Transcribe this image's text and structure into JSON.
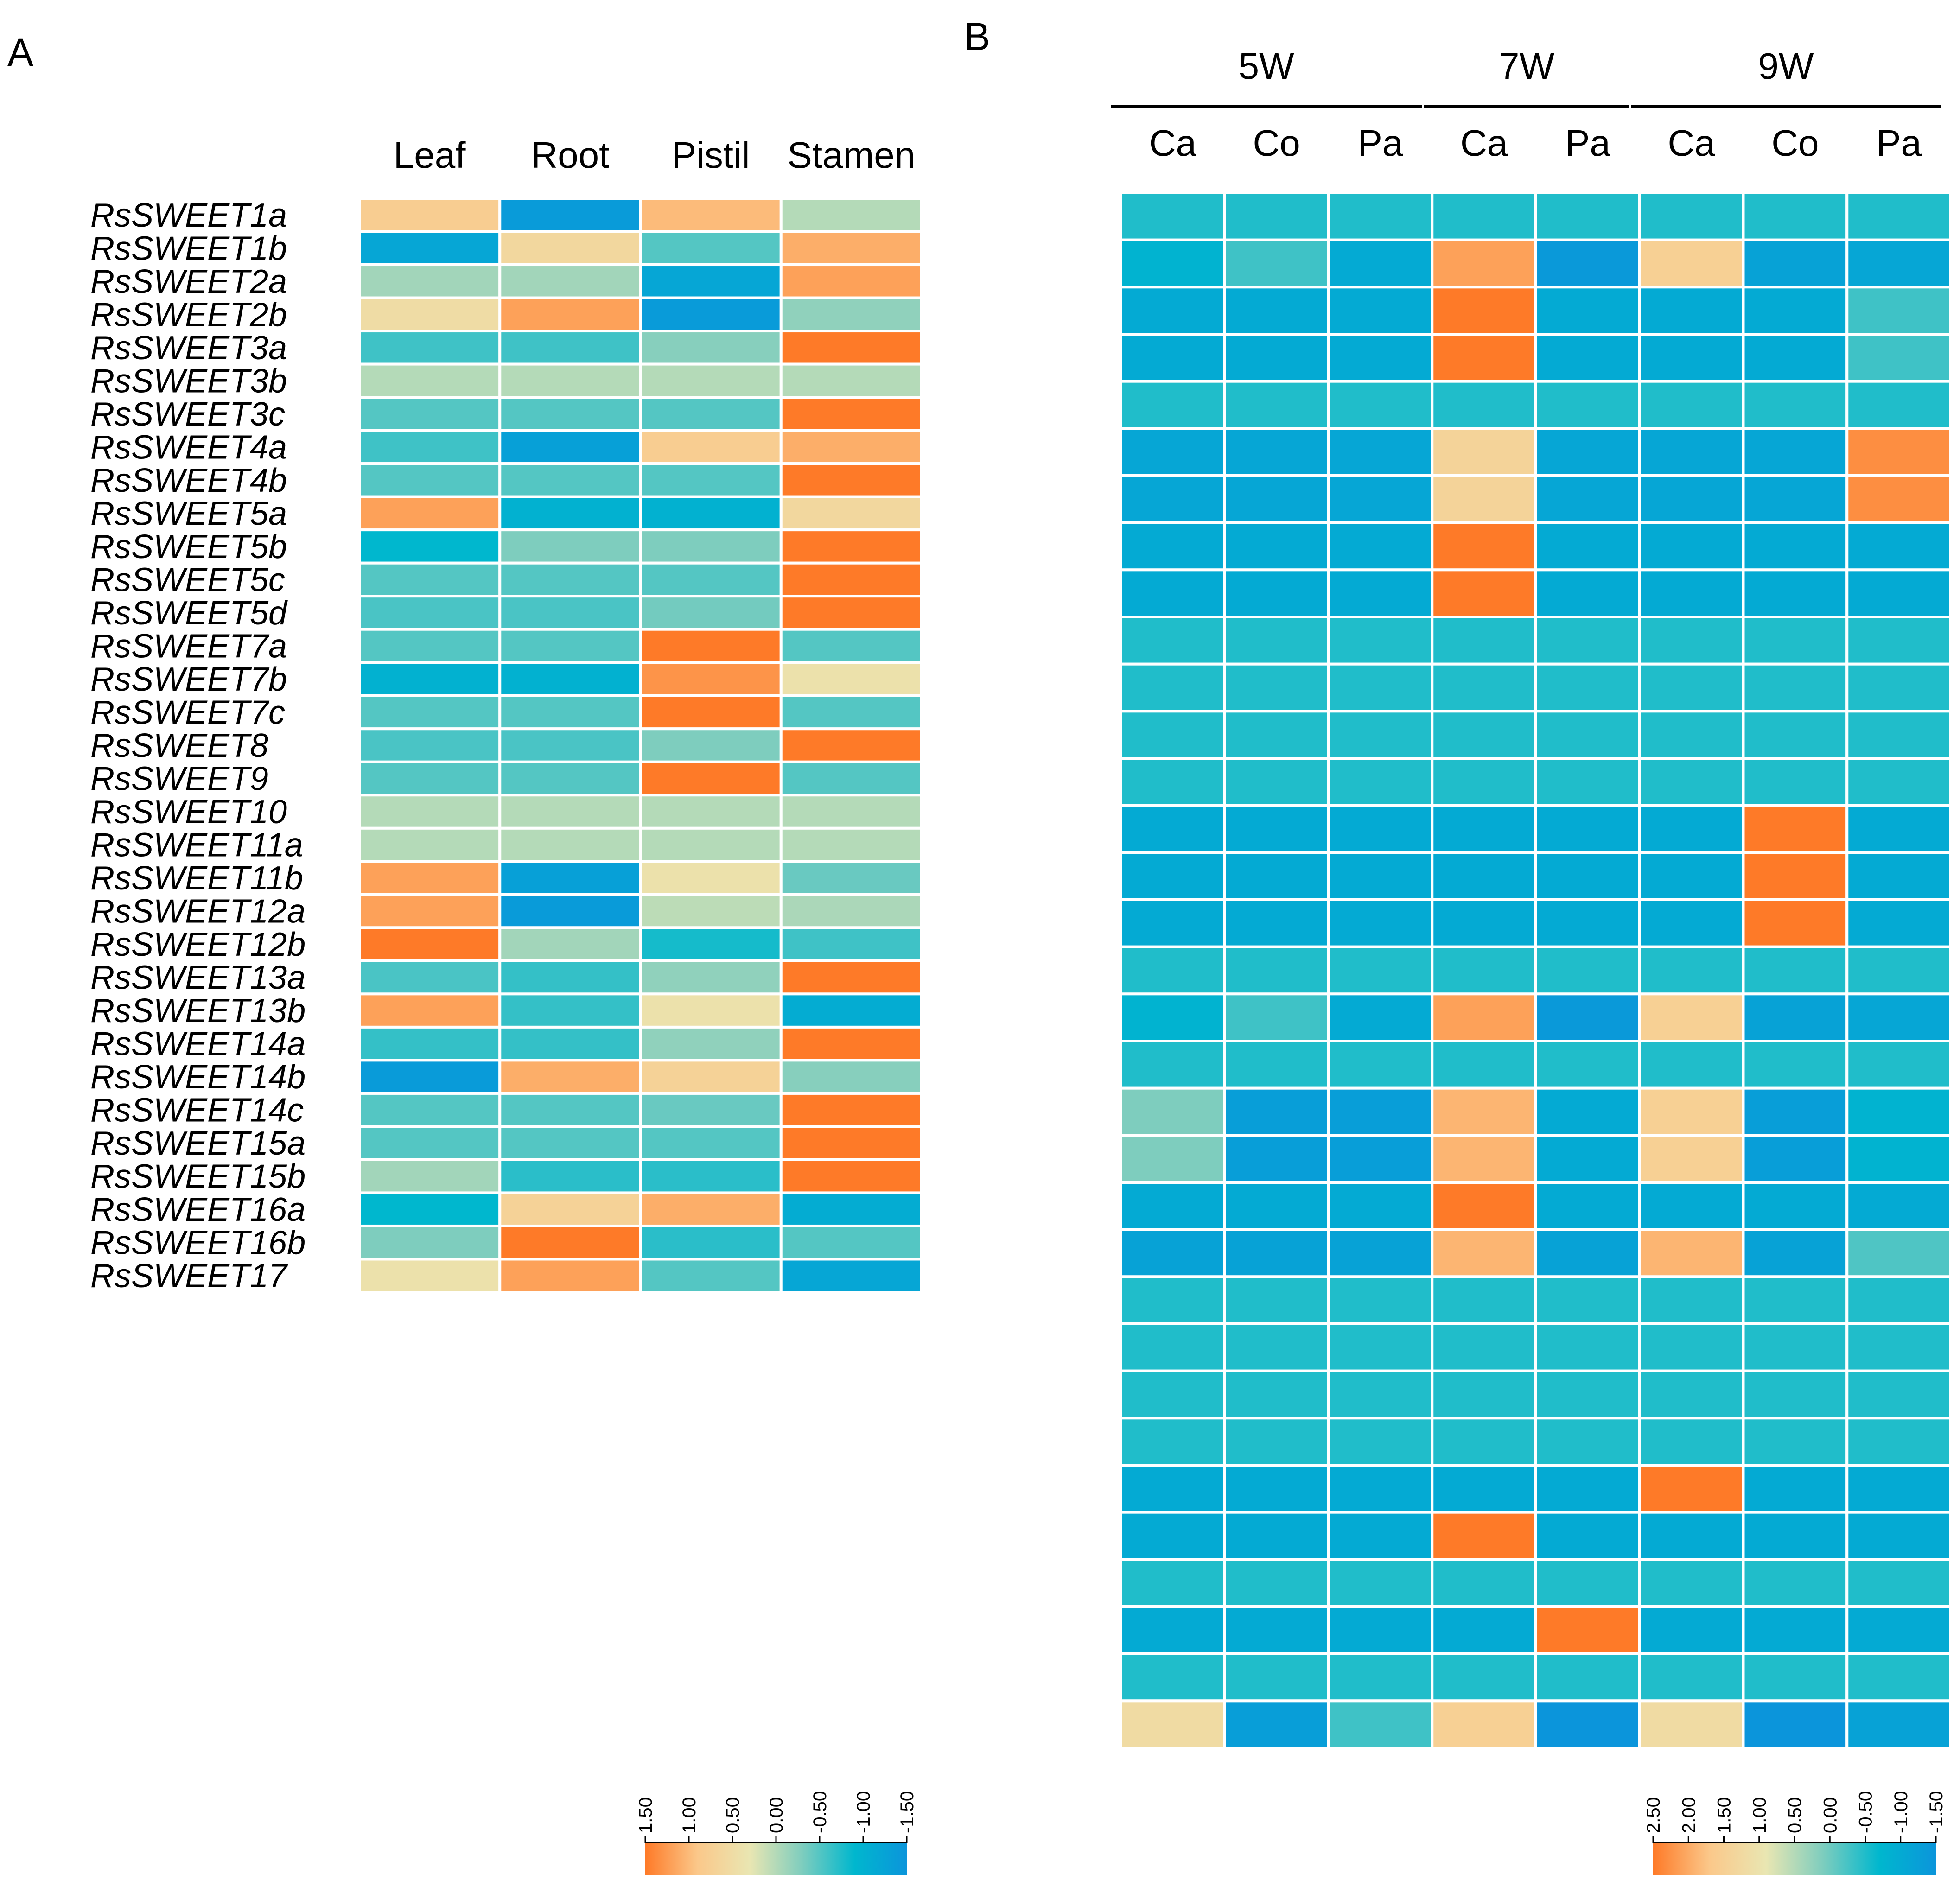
{
  "chart_data": [
    {
      "type": "heatmap",
      "panel_label": "A",
      "columns": [
        "Leaf",
        "Root",
        "Pistil",
        "Stamen"
      ],
      "rows": [
        "RsSWEET1a",
        "RsSWEET1b",
        "RsSWEET2a",
        "RsSWEET2b",
        "RsSWEET3a",
        "RsSWEET3b",
        "RsSWEET3c",
        "RsSWEET4a",
        "RsSWEET4b",
        "RsSWEET5a",
        "RsSWEET5b",
        "RsSWEET5c",
        "RsSWEET5d",
        "RsSWEET7a",
        "RsSWEET7b",
        "RsSWEET7c",
        "RsSWEET8",
        "RsSWEET9",
        "RsSWEET10",
        "RsSWEET11a",
        "RsSWEET11b",
        "RsSWEET12a",
        "RsSWEET12b",
        "RsSWEET13a",
        "RsSWEET13b",
        "RsSWEET14a",
        "RsSWEET14b",
        "RsSWEET14c",
        "RsSWEET15a",
        "RsSWEET15b",
        "RsSWEET16a",
        "RsSWEET16b",
        "RsSWEET17"
      ],
      "values": [
        [
          0.8,
          -1.4,
          1.0,
          0.0
        ],
        [
          -1.2,
          0.6,
          -0.5,
          1.1
        ],
        [
          -0.1,
          -0.1,
          -1.2,
          1.2
        ],
        [
          0.5,
          1.2,
          -1.4,
          -0.2
        ],
        [
          -0.6,
          -0.6,
          -0.25,
          1.5
        ],
        [
          0.0,
          0.0,
          0.0,
          0.0
        ],
        [
          -0.5,
          -0.5,
          -0.5,
          1.5
        ],
        [
          -0.6,
          -1.3,
          0.8,
          1.1
        ],
        [
          -0.5,
          -0.5,
          -0.5,
          1.5
        ],
        [
          1.2,
          -1.0,
          -1.0,
          0.6
        ],
        [
          -0.9,
          -0.3,
          -0.3,
          1.5
        ],
        [
          -0.5,
          -0.5,
          -0.5,
          1.5
        ],
        [
          -0.55,
          -0.55,
          -0.35,
          1.5
        ],
        [
          -0.5,
          -0.5,
          1.5,
          -0.5
        ],
        [
          -1.0,
          -1.0,
          1.3,
          0.4
        ],
        [
          -0.5,
          -0.5,
          1.5,
          -0.5
        ],
        [
          -0.55,
          -0.55,
          -0.3,
          1.5
        ],
        [
          -0.5,
          -0.5,
          1.5,
          -0.5
        ],
        [
          0.0,
          0.0,
          0.0,
          0.0
        ],
        [
          0.0,
          0.0,
          0.0,
          0.0
        ],
        [
          1.2,
          -1.3,
          0.4,
          -0.4
        ],
        [
          1.2,
          -1.4,
          0.05,
          -0.05
        ],
        [
          1.5,
          -0.1,
          -0.8,
          -0.6
        ],
        [
          -0.55,
          -0.65,
          -0.2,
          1.5
        ],
        [
          1.2,
          -0.65,
          0.4,
          -1.1
        ],
        [
          -0.65,
          -0.65,
          -0.2,
          1.5
        ],
        [
          -1.4,
          1.1,
          0.7,
          -0.25
        ],
        [
          -0.5,
          -0.5,
          -0.4,
          1.5
        ],
        [
          -0.5,
          -0.5,
          -0.5,
          1.5
        ],
        [
          -0.1,
          -0.7,
          -0.7,
          1.5
        ],
        [
          -0.9,
          0.7,
          1.1,
          -1.1
        ],
        [
          -0.3,
          1.5,
          -0.7,
          -0.5
        ],
        [
          0.4,
          1.2,
          -0.5,
          -1.2
        ]
      ],
      "colorbar": {
        "ticks": [
          "1.50",
          "1.00",
          "0.50",
          "0.00",
          "-0.50",
          "-1.00",
          "-1.50"
        ],
        "range": [
          1.5,
          -1.5
        ],
        "colors": [
          "#FE7A28",
          "#FBC88A",
          "#E9E6B2",
          "#7ECDBE",
          "#00B7CE",
          "#0B95DB"
        ]
      }
    },
    {
      "type": "heatmap",
      "panel_label": "B",
      "groups": [
        {
          "label": "5W",
          "columns": [
            "Ca",
            "Co",
            "Pa"
          ]
        },
        {
          "label": "7W",
          "columns": [
            "Ca",
            "Pa"
          ]
        },
        {
          "label": "9W",
          "columns": [
            "Ca",
            "Co",
            "Pa"
          ]
        }
      ],
      "columns": [
        "Ca",
        "Co",
        "Pa",
        "Ca",
        "Pa",
        "Ca",
        "Co",
        "Pa"
      ],
      "rows_labeled": false,
      "row_count": 33,
      "values": [
        [
          -0.5,
          -0.5,
          -0.5,
          -0.5,
          -0.5,
          -0.5,
          -0.5,
          -0.5
        ],
        [
          -0.8,
          -0.3,
          -1.0,
          2.1,
          -1.4,
          1.5,
          -1.2,
          -1.1
        ],
        [
          -1.0,
          -1.0,
          -1.0,
          2.5,
          -1.0,
          -1.0,
          -1.0,
          -0.3
        ],
        [
          -1.0,
          -1.0,
          -1.0,
          2.5,
          -1.0,
          -1.0,
          -1.0,
          -0.3
        ],
        [
          -0.5,
          -0.5,
          -0.5,
          -0.5,
          -0.5,
          -0.5,
          -0.5,
          -0.5
        ],
        [
          -1.1,
          -1.1,
          -1.1,
          1.4,
          -1.1,
          -1.1,
          -1.1,
          2.3
        ],
        [
          -1.1,
          -1.1,
          -1.1,
          1.4,
          -1.1,
          -1.1,
          -1.1,
          2.3
        ],
        [
          -1.0,
          -1.0,
          -1.0,
          2.5,
          -1.0,
          -1.0,
          -1.0,
          -1.0
        ],
        [
          -1.0,
          -1.0,
          -1.0,
          2.5,
          -1.0,
          -1.0,
          -1.0,
          -1.0
        ],
        [
          -0.5,
          -0.5,
          -0.5,
          -0.5,
          -0.5,
          -0.5,
          -0.5,
          -0.5
        ],
        [
          -0.5,
          -0.5,
          -0.5,
          -0.5,
          -0.5,
          -0.5,
          -0.5,
          -0.5
        ],
        [
          -0.5,
          -0.5,
          -0.5,
          -0.5,
          -0.5,
          -0.5,
          -0.5,
          -0.5
        ],
        [
          -0.5,
          -0.5,
          -0.5,
          -0.5,
          -0.5,
          -0.5,
          -0.5,
          -0.5
        ],
        [
          -1.0,
          -1.0,
          -1.0,
          -1.0,
          -1.0,
          -1.0,
          2.5,
          -1.0
        ],
        [
          -1.0,
          -1.0,
          -1.0,
          -1.0,
          -1.0,
          -1.0,
          2.5,
          -1.0
        ],
        [
          -1.0,
          -1.0,
          -1.0,
          -1.0,
          -1.0,
          -1.0,
          2.5,
          -1.0
        ],
        [
          -0.5,
          -0.5,
          -0.5,
          -0.5,
          -0.5,
          -0.5,
          -0.5,
          -0.5
        ],
        [
          -0.8,
          -0.3,
          -1.0,
          2.1,
          -1.4,
          1.5,
          -1.2,
          -1.1
        ],
        [
          -0.5,
          -0.5,
          -0.5,
          -0.5,
          -0.5,
          -0.5,
          -0.5,
          -0.5
        ],
        [
          0.1,
          -1.3,
          -1.3,
          1.9,
          -1.0,
          1.5,
          -1.3,
          -0.8
        ],
        [
          0.1,
          -1.3,
          -1.3,
          1.9,
          -1.0,
          1.5,
          -1.3,
          -0.8
        ],
        [
          -1.0,
          -1.0,
          -1.0,
          2.5,
          -1.0,
          -1.0,
          -1.0,
          -1.0
        ],
        [
          -1.2,
          -1.2,
          -1.2,
          1.9,
          -1.2,
          1.9,
          -1.2,
          -0.2
        ],
        [
          -0.5,
          -0.5,
          -0.5,
          -0.5,
          -0.5,
          -0.5,
          -0.5,
          -0.5
        ],
        [
          -0.5,
          -0.5,
          -0.5,
          -0.5,
          -0.5,
          -0.5,
          -0.5,
          -0.5
        ],
        [
          -0.5,
          -0.5,
          -0.5,
          -0.5,
          -0.5,
          -0.5,
          -0.5,
          -0.5
        ],
        [
          -0.5,
          -0.5,
          -0.5,
          -0.5,
          -0.5,
          -0.5,
          -0.5,
          -0.5
        ],
        [
          -1.0,
          -1.0,
          -1.0,
          -1.0,
          -1.0,
          2.5,
          -1.0,
          -1.0
        ],
        [
          -1.0,
          -1.0,
          -1.0,
          2.5,
          -1.0,
          -1.0,
          -1.0,
          -1.0
        ],
        [
          -0.5,
          -0.5,
          -0.5,
          -0.5,
          -0.5,
          -0.5,
          -0.5,
          -0.5
        ],
        [
          -1.0,
          -1.0,
          -1.0,
          -1.0,
          2.5,
          -1.0,
          -1.0,
          -1.0
        ],
        [
          -0.5,
          -0.5,
          -0.5,
          -0.5,
          -0.5,
          -0.5,
          -0.5,
          -0.5
        ],
        [
          1.2,
          -1.3,
          -0.3,
          1.5,
          -1.5,
          1.2,
          -1.5,
          -1.2
        ]
      ],
      "colorbar": {
        "ticks": [
          "2.50",
          "2.00",
          "1.50",
          "1.00",
          "0.50",
          "0.00",
          "-0.50",
          "-1.00",
          "-1.50"
        ],
        "range": [
          2.5,
          -1.5
        ],
        "colors": [
          "#FE7A28",
          "#FBC88A",
          "#E9E6B2",
          "#7ECDBE",
          "#00B7CE",
          "#0B95DB"
        ]
      }
    }
  ]
}
